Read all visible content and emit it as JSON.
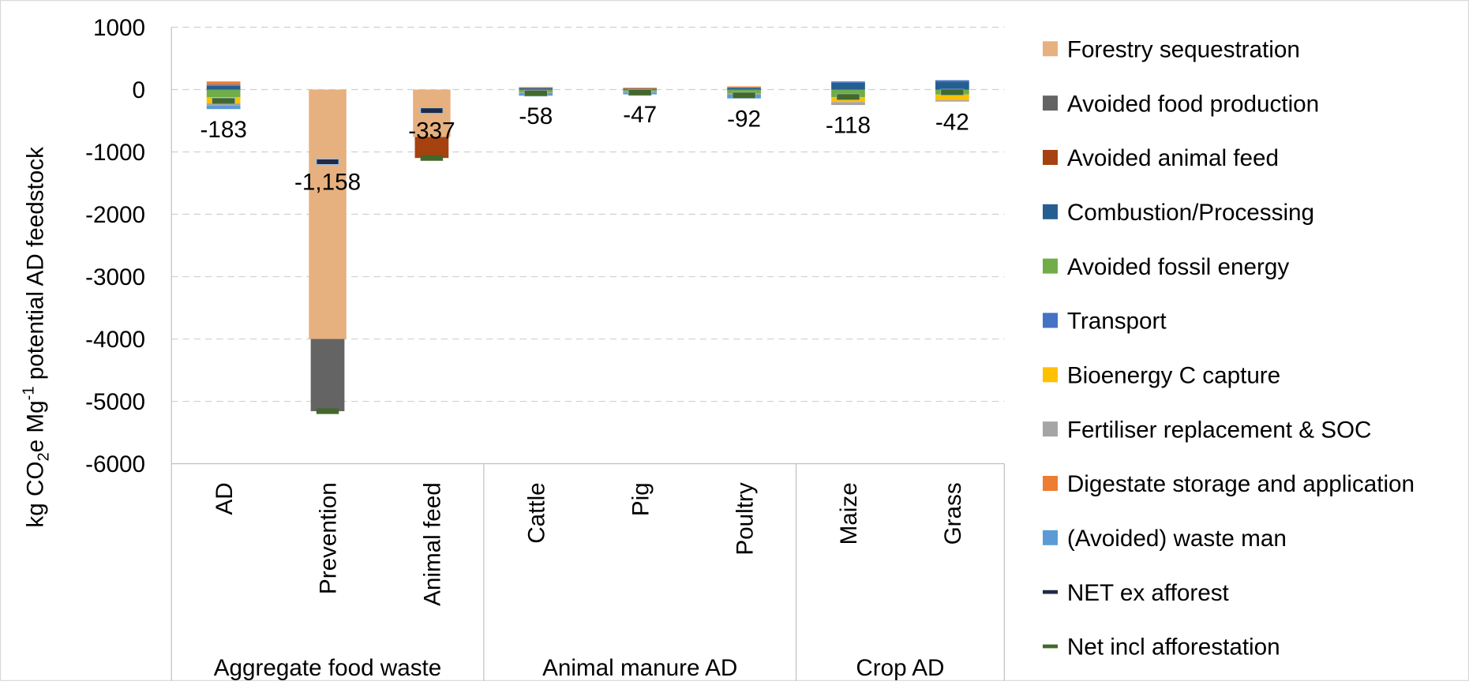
{
  "chart_data": {
    "type": "stacked-bar",
    "y_label": [
      "kg CO",
      "2",
      "e Mg",
      "-1",
      " potential AD feedstock"
    ],
    "groups": [
      {
        "name": "Aggregate food waste",
        "categories": [
          "AD",
          "Prevention",
          "Animal feed"
        ]
      },
      {
        "name": "Animal manure AD",
        "categories": [
          "Cattle",
          "Pig",
          "Poultry"
        ]
      },
      {
        "name": "Crop AD",
        "categories": [
          "Maize",
          "Grass"
        ]
      }
    ],
    "ylim": [
      -6000,
      1000
    ],
    "yticks": [
      1000,
      0,
      -1000,
      -2000,
      -3000,
      -4000,
      -5000,
      -6000
    ],
    "grid": true,
    "legend": "right",
    "series": [
      {
        "name": "Forestry sequestration",
        "color": "#e6b07f",
        "values": [
          0,
          -4000,
          -760,
          0,
          0,
          0,
          0,
          0
        ]
      },
      {
        "name": "Avoided food production",
        "color": "#646464",
        "values": [
          0,
          -1158,
          0,
          0,
          0,
          0,
          0,
          0
        ]
      },
      {
        "name": "Avoided animal feed",
        "color": "#a5420f",
        "values": [
          0,
          0,
          -337,
          0,
          0,
          0,
          0,
          0
        ]
      },
      {
        "name": "Combustion/Processing",
        "color": "#255e91",
        "values": [
          60,
          0,
          0,
          20,
          15,
          25,
          110,
          120
        ]
      },
      {
        "name": "Avoided fossil energy",
        "color": "#70ad47",
        "values": [
          -120,
          0,
          0,
          -38,
          -30,
          -62,
          -120,
          -80
        ]
      },
      {
        "name": "Transport",
        "color": "#4472c4",
        "values": [
          20,
          0,
          0,
          5,
          0,
          5,
          20,
          30
        ]
      },
      {
        "name": "Bioenergy C capture",
        "color": "#ffc000",
        "values": [
          -100,
          0,
          0,
          0,
          0,
          0,
          -80,
          -90
        ]
      },
      {
        "name": "Fertiliser replacement & SOC",
        "color": "#a5a5a5",
        "values": [
          -40,
          0,
          0,
          -20,
          -17,
          -20,
          -48,
          -22
        ]
      },
      {
        "name": "Digestate storage and application",
        "color": "#ed7d31",
        "values": [
          50,
          0,
          0,
          15,
          15,
          20,
          0,
          0
        ]
      },
      {
        "name": "(Avoided) waste man",
        "color": "#5b9bd5",
        "values": [
          -53,
          0,
          0,
          -40,
          -30,
          -60,
          0,
          0
        ]
      },
      {
        "name": "NET ex afforest",
        "type": "marker",
        "color": "#1f2a44",
        "values": [
          -183,
          -1158,
          -337,
          -58,
          -47,
          -92,
          -118,
          -42
        ],
        "value_labels": [
          "-183",
          "-1,158",
          "-337",
          "-58",
          "-47",
          "-92",
          "-118",
          "-42"
        ]
      },
      {
        "name": "Net incl afforestation",
        "type": "marker",
        "color": "#43682b",
        "values": [
          -183,
          -5158,
          -1097,
          -58,
          -47,
          -92,
          -118,
          -42
        ]
      }
    ]
  }
}
